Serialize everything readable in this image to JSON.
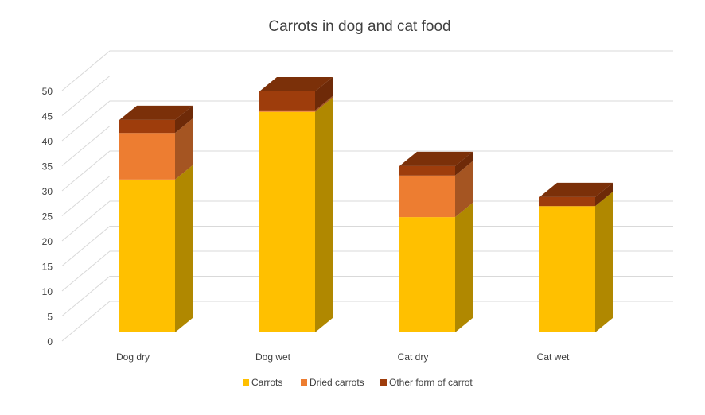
{
  "chart_data": {
    "type": "bar",
    "stacked": true,
    "three_d": true,
    "title": "Carrots in dog and cat food",
    "categories": [
      "Dog dry",
      "Dog wet",
      "Cat dry",
      "Cat wet"
    ],
    "series": [
      {
        "name": "Carrots",
        "values": [
          30.5,
          44,
          23,
          25.2
        ],
        "color": "#FFC000",
        "side": "#B08800",
        "top": "#FFD24D"
      },
      {
        "name": "Dried carrots",
        "values": [
          9.3,
          0.3,
          8.3,
          0
        ],
        "color": "#ED7D31",
        "side": "#A55522",
        "top": "#F2A064"
      },
      {
        "name": "Other form of carrot",
        "values": [
          2.6,
          3.8,
          1.9,
          1.8
        ],
        "color": "#9E3D0C",
        "side": "#6E2A08",
        "top": "#7B3009"
      }
    ],
    "ylim": [
      0,
      50
    ],
    "yticks": [
      0,
      5,
      10,
      15,
      20,
      25,
      30,
      35,
      40,
      45,
      50
    ],
    "xlabel": "",
    "ylabel": "",
    "grid": true,
    "legend": "bottom"
  }
}
